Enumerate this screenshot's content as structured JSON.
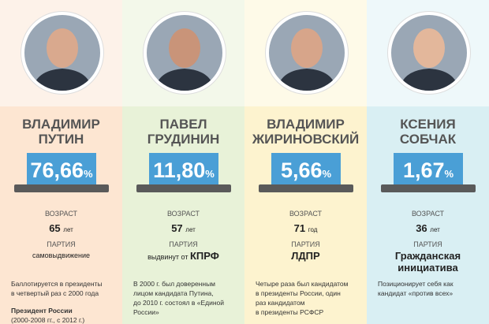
{
  "candidates": [
    {
      "name": [
        "ВЛАДИМИР",
        "ПУТИН"
      ],
      "percent": "76,66",
      "percent_unit": "%",
      "age_label": "ВОЗРАСТ",
      "age": "65",
      "age_unit": "лет",
      "party_label": "ПАРТИЯ",
      "party_note": "самовыдвижение",
      "description": [
        "Баллотируется в президенты",
        "в четвертый раз с 2000 года"
      ],
      "note_title": "Президент России",
      "note": "(2000-2008 гг., с 2012 г.)"
    },
    {
      "name": [
        "ПАВЕЛ",
        "ГРУДИНИН"
      ],
      "percent": "11,80",
      "percent_unit": "%",
      "age_label": "ВОЗРАСТ",
      "age": "57",
      "age_unit": "лет",
      "party_label": "ПАРТИЯ",
      "party_note": "выдвинут от",
      "party": [
        "КПРФ"
      ],
      "description": [
        "В 2000 г. был доверенным",
        "лицом кандидата Путина,",
        "до 2010 г. состоял в «Единой",
        "России»"
      ]
    },
    {
      "name": [
        "ВЛАДИМИР",
        "ЖИРИНОВСКИЙ"
      ],
      "percent": "5,66",
      "percent_unit": "%",
      "age_label": "ВОЗРАСТ",
      "age": "71",
      "age_unit": "год",
      "party_label": "ПАРТИЯ",
      "party": [
        "ЛДПР"
      ],
      "description": [
        "Четыре раза был кандидатом",
        "в президенты России, один",
        "раз кандидатом",
        "в президенты РСФСР"
      ]
    },
    {
      "name": [
        "КСЕНИЯ",
        "СОБЧАК"
      ],
      "percent": "1,67",
      "percent_unit": "%",
      "age_label": "ВОЗРАСТ",
      "age": "36",
      "age_unit": "лет",
      "party_label": "ПАРТИЯ",
      "party": [
        "Гражданская",
        "инициатива"
      ],
      "description": [
        "Позиционирует себя как",
        "кандидат «против всех»"
      ]
    }
  ]
}
